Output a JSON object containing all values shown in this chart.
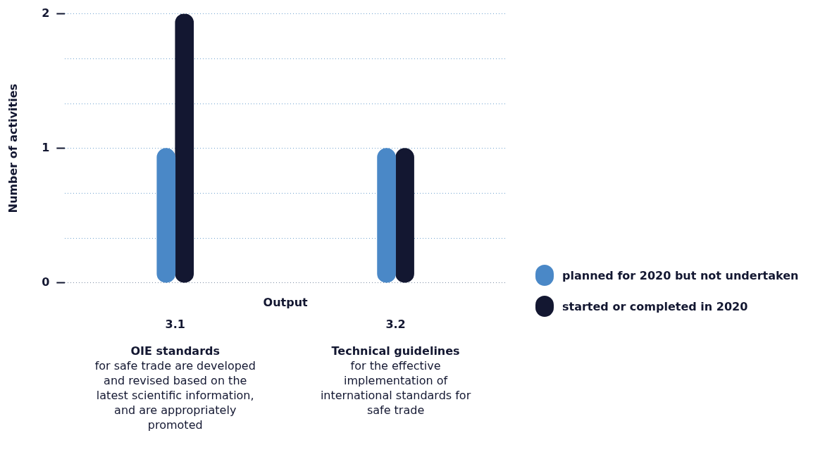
{
  "chart_data": {
    "type": "bar",
    "xlabel": "Output",
    "ylabel": "Number of activities",
    "categories": [
      "3.1",
      "3.2"
    ],
    "series": [
      {
        "name": "planned for 2020 but not undertaken",
        "color": "#4a88c7",
        "values": [
          1,
          1
        ]
      },
      {
        "name": "started or completed in 2020",
        "color": "#131731",
        "values": [
          2,
          1
        ]
      }
    ],
    "ylim": [
      0,
      2
    ],
    "yticks": [
      0,
      {
        "value": 0.3333,
        "label": null
      },
      {
        "value": 0.6667,
        "label": null
      },
      1,
      {
        "value": 1.3333,
        "label": null
      },
      {
        "value": 1.6667,
        "label": null
      },
      2
    ],
    "grid": "y",
    "legend": "right",
    "annotations": [
      "OIE standards",
      "for safe trade are developed and revised based on the latest scientific information, and are appropriately promoted",
      "Technical guidelines",
      "for the effective implementation of international standards for safe trade"
    ]
  }
}
